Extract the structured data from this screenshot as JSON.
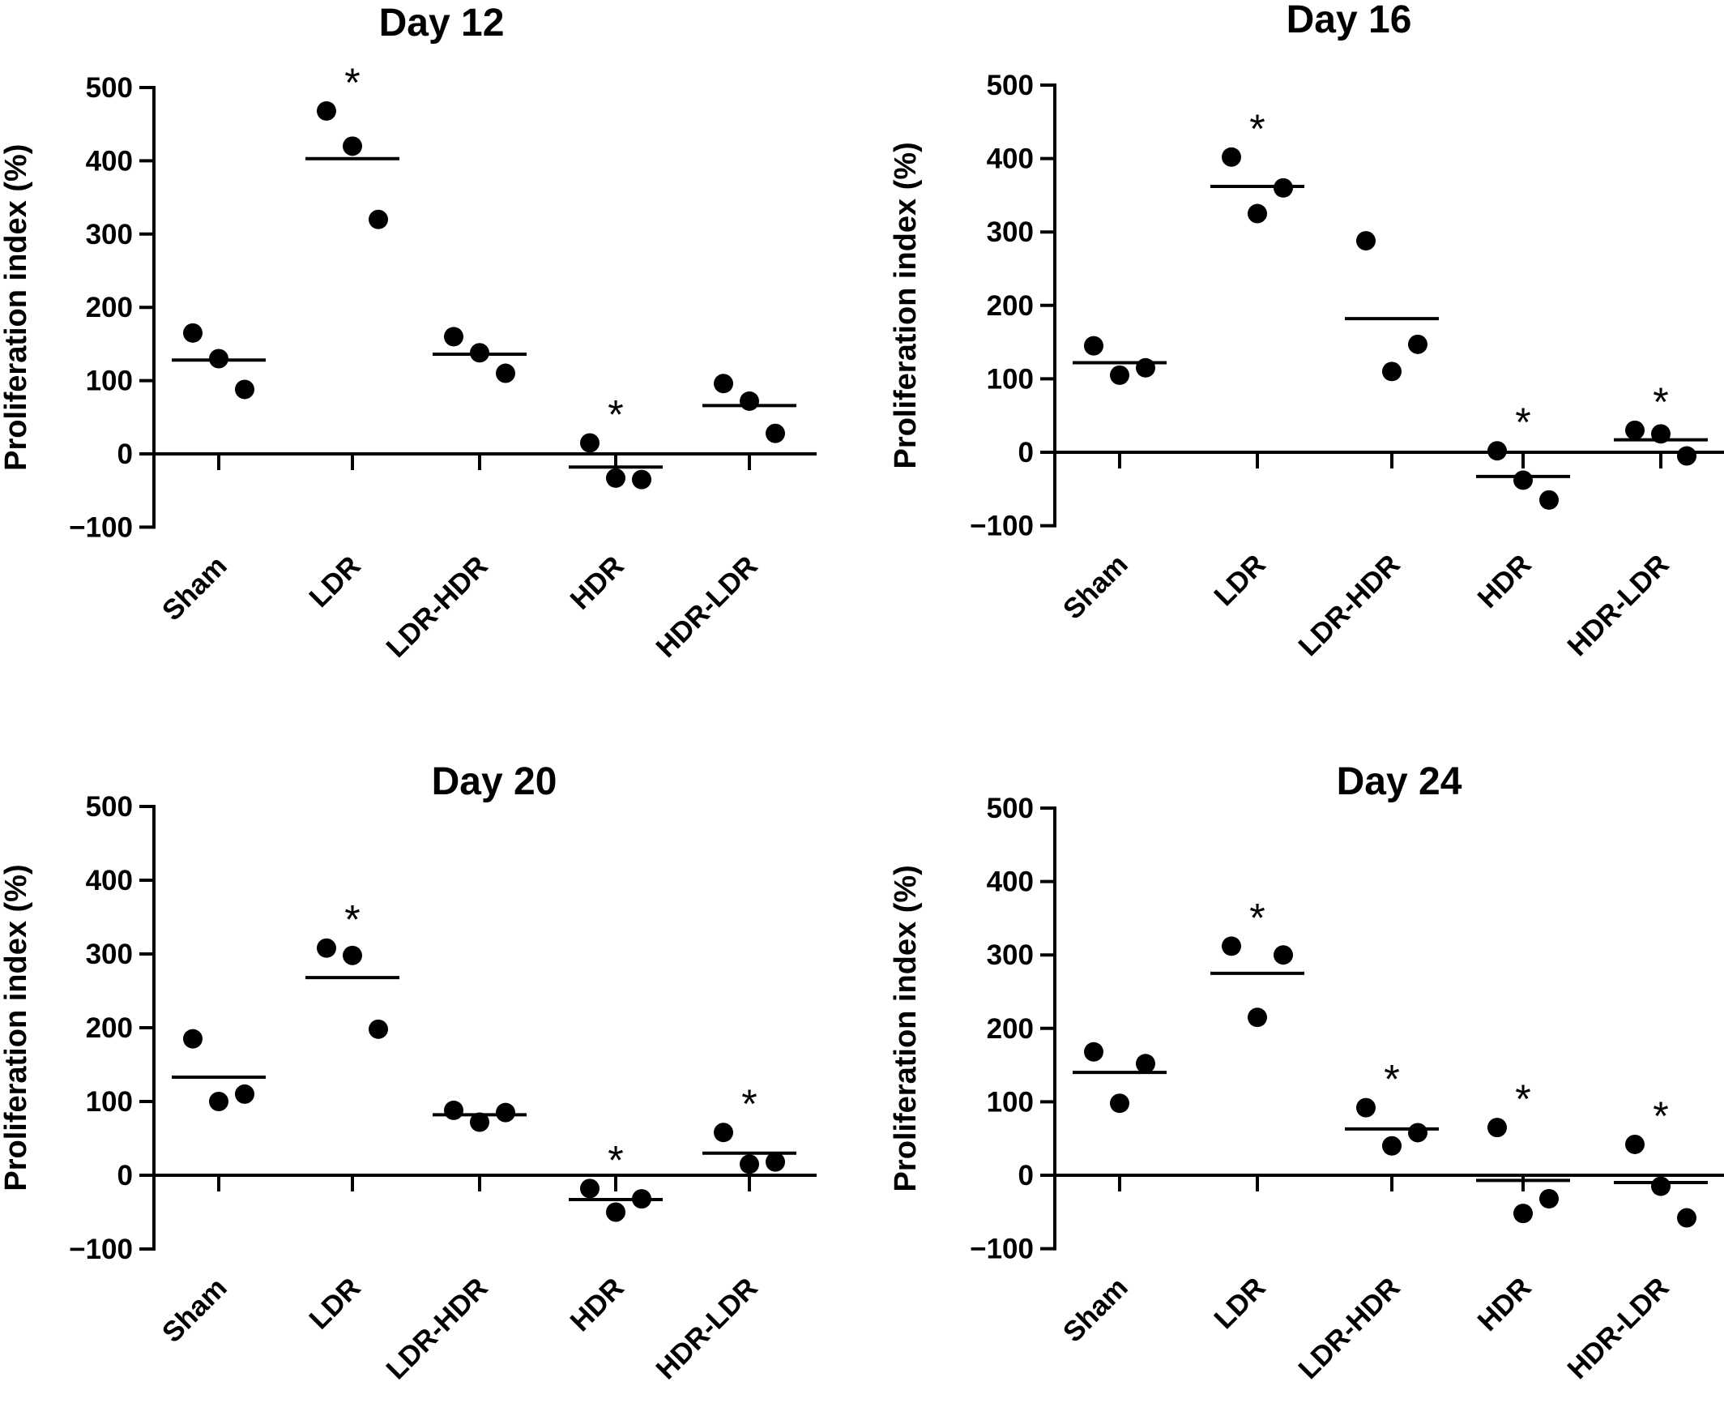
{
  "colors": {
    "ink": "#000000",
    "background": "#ffffff"
  },
  "chart_data": [
    {
      "type": "scatter",
      "title": "Day 12",
      "ylabel": "Proliferation index (%)",
      "ylim": [
        -100,
        500
      ],
      "yticks": [
        "500",
        "400",
        "300",
        "200",
        "100",
        "0",
        "−100"
      ],
      "categories": [
        "Sham",
        "LDR",
        "LDR-HDR",
        "HDR",
        "HDR-LDR"
      ],
      "points": [
        [
          165,
          130,
          88
        ],
        [
          468,
          420,
          320
        ],
        [
          160,
          138,
          110
        ],
        [
          15,
          -33,
          -35
        ],
        [
          96,
          72,
          28
        ]
      ],
      "means": [
        128,
        403,
        136,
        -18,
        66
      ],
      "significance": [
        "",
        "*",
        "",
        "*",
        ""
      ]
    },
    {
      "type": "scatter",
      "title": "Day 16",
      "ylabel": "Proliferation index (%)",
      "ylim": [
        -100,
        500
      ],
      "yticks": [
        "500",
        "400",
        "300",
        "200",
        "100",
        "0",
        "−100"
      ],
      "categories": [
        "Sham",
        "LDR",
        "LDR-HDR",
        "HDR",
        "HDR-LDR"
      ],
      "points": [
        [
          145,
          105,
          115
        ],
        [
          402,
          325,
          360
        ],
        [
          288,
          110,
          147
        ],
        [
          2,
          -38,
          -65
        ],
        [
          30,
          25,
          -5
        ]
      ],
      "means": [
        122,
        362,
        182,
        -33,
        17
      ],
      "significance": [
        "",
        "*",
        "",
        "*",
        "*"
      ]
    },
    {
      "type": "scatter",
      "title": "Day 20",
      "ylabel": "Proliferation index (%)",
      "ylim": [
        -100,
        500
      ],
      "yticks": [
        "500",
        "400",
        "300",
        "200",
        "100",
        "0",
        "−100"
      ],
      "categories": [
        "Sham",
        "LDR",
        "LDR-HDR",
        "HDR",
        "HDR-LDR"
      ],
      "points": [
        [
          185,
          100,
          110
        ],
        [
          308,
          298,
          198
        ],
        [
          88,
          72,
          85
        ],
        [
          -18,
          -50,
          -32
        ],
        [
          58,
          15,
          18
        ]
      ],
      "means": [
        133,
        268,
        82,
        -33,
        30
      ],
      "significance": [
        "",
        "*",
        "",
        "*",
        "*"
      ]
    },
    {
      "type": "scatter",
      "title": "Day 24",
      "ylabel": "Proliferation index (%)",
      "ylim": [
        -100,
        500
      ],
      "yticks": [
        "500",
        "400",
        "300",
        "200",
        "100",
        "0",
        "−100"
      ],
      "categories": [
        "Sham",
        "LDR",
        "LDR-HDR",
        "HDR",
        "HDR-LDR"
      ],
      "points": [
        [
          168,
          98,
          152
        ],
        [
          312,
          215,
          300
        ],
        [
          92,
          40,
          58
        ],
        [
          65,
          -52,
          -32
        ],
        [
          42,
          -15,
          -58
        ]
      ],
      "means": [
        140,
        275,
        63,
        -7,
        -10
      ],
      "significance": [
        "",
        "*",
        "*",
        "*",
        "*"
      ]
    }
  ]
}
